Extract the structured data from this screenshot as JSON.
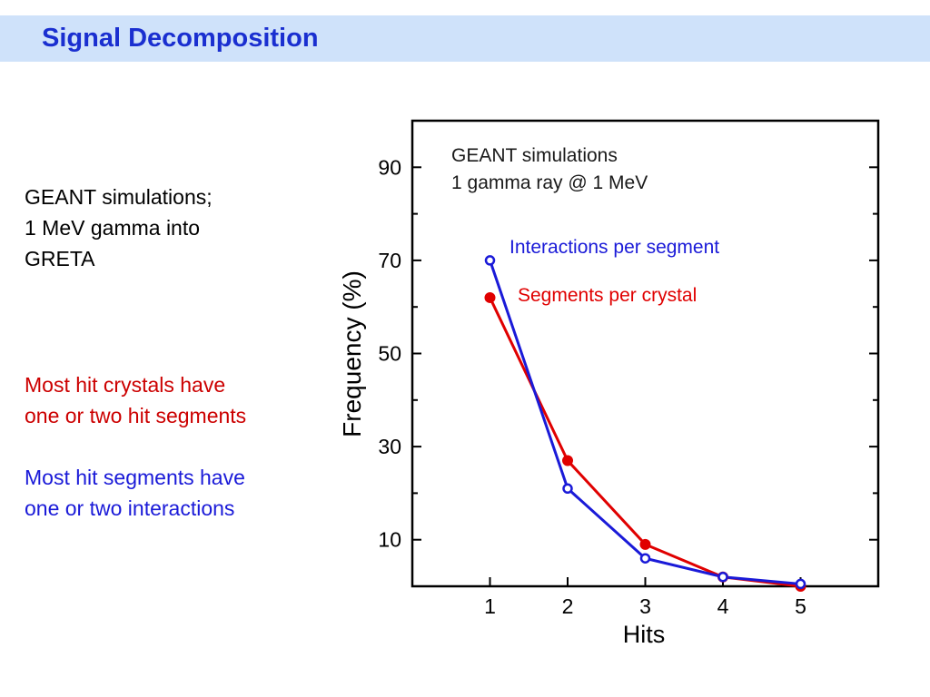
{
  "page": {
    "title": "Signal Decomposition"
  },
  "notes": {
    "intro_line1": "GEANT simulations;",
    "intro_line2": "1 MeV gamma into",
    "intro_line3": "GRETA",
    "red_line1": "Most hit crystals have",
    "red_line2": "one or two hit segments",
    "blue_line1": "Most hit segments have",
    "blue_line2": "one or two interactions"
  },
  "chart_data": {
    "type": "line",
    "annotation_line1": "GEANT simulations",
    "annotation_line2": "1 gamma ray @ 1 MeV",
    "xlabel": "Hits",
    "ylabel": "Frequency (%)",
    "x": [
      1,
      2,
      3,
      4,
      5
    ],
    "x_ticks": [
      "1",
      "2",
      "3",
      "4",
      "5"
    ],
    "y_ticks": [
      "10",
      "30",
      "50",
      "70",
      "90"
    ],
    "xlim": [
      0,
      6
    ],
    "ylim": [
      0,
      100
    ],
    "grid": false,
    "series": [
      {
        "name": "Interactions per segment",
        "values": [
          70,
          21,
          6,
          2,
          0.5
        ],
        "color": "#1a1ad8",
        "marker": "open-circle"
      },
      {
        "name": "Segments per crystal",
        "values": [
          62,
          27,
          9,
          2,
          0
        ],
        "color": "#e00000",
        "marker": "filled-circle"
      }
    ]
  }
}
